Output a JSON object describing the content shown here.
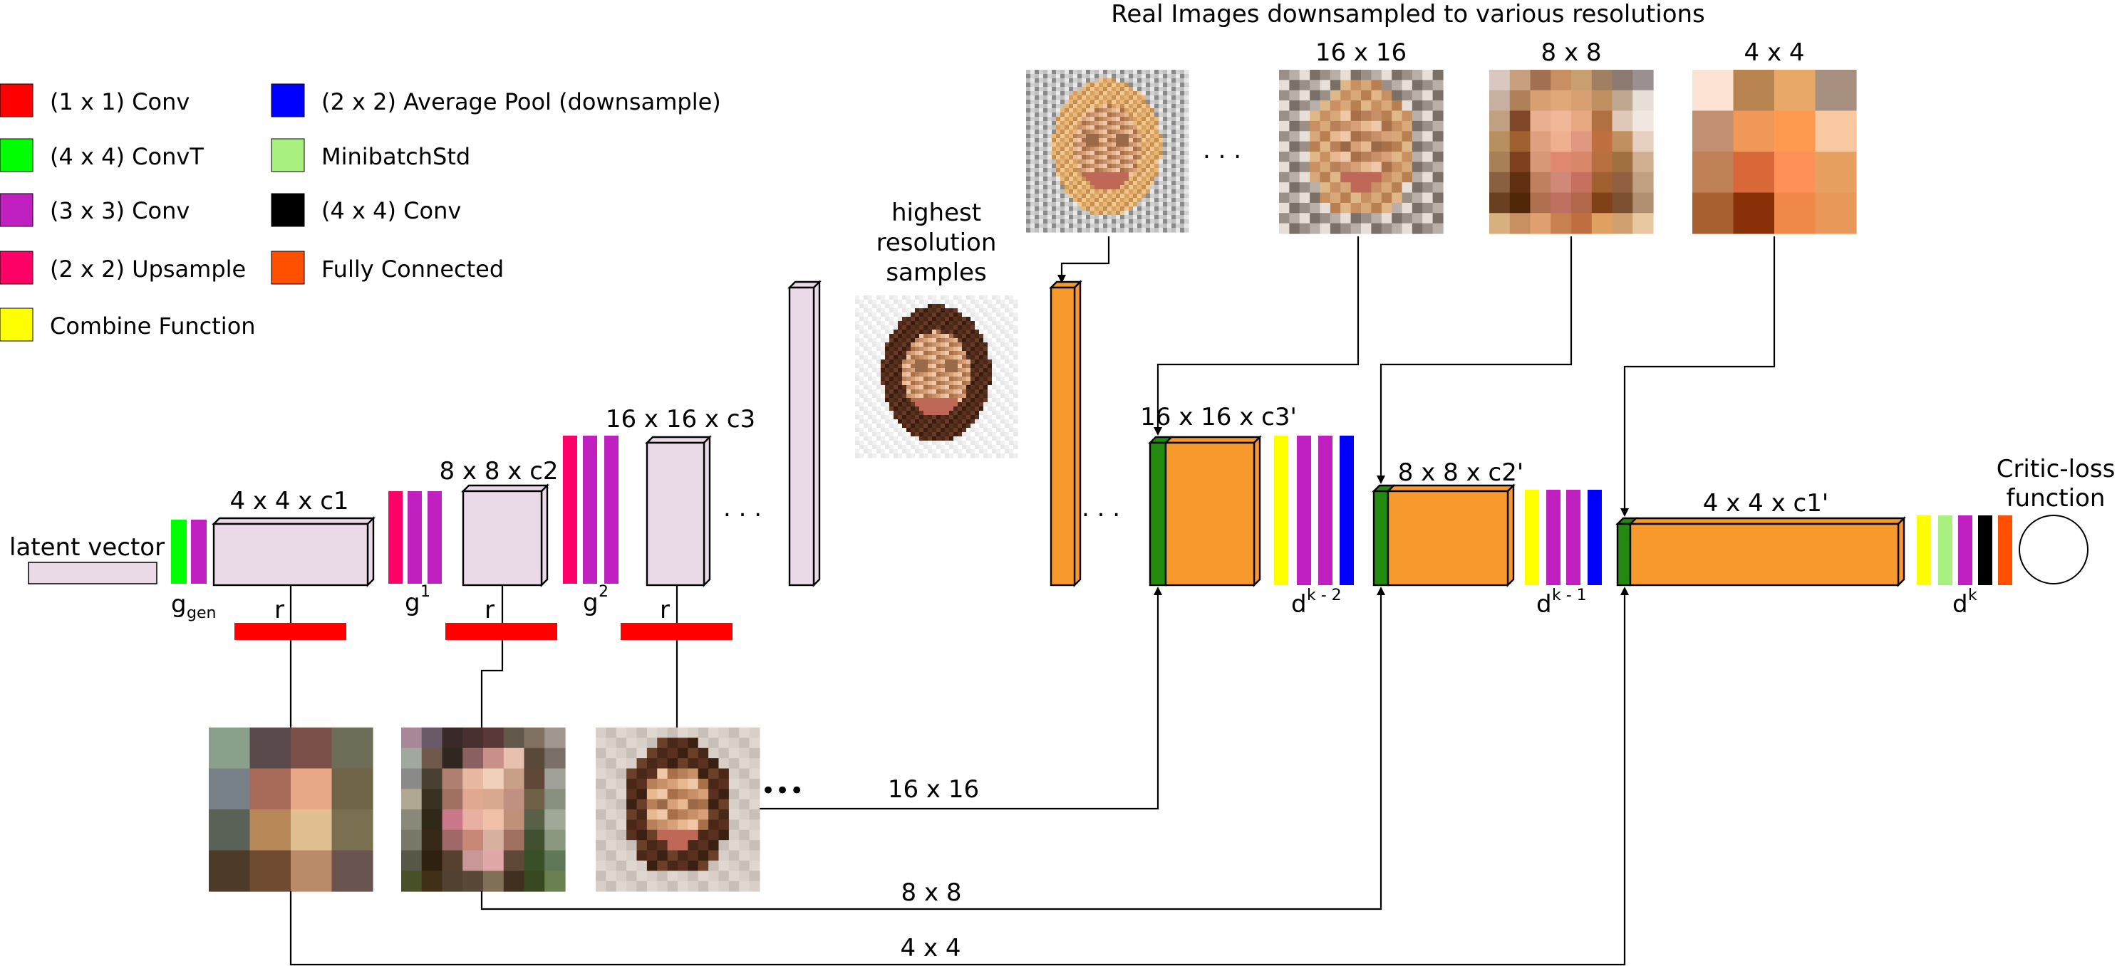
{
  "legend": [
    {
      "label": "(1 x 1) Conv",
      "color": "#ff0000"
    },
    {
      "label": "(4 x 4) ConvT",
      "color": "#00ff00"
    },
    {
      "label": "(3 x 3) Conv",
      "color": "#c020c0"
    },
    {
      "label": "(2 x 2) Upsample",
      "color": "#ff0066"
    },
    {
      "label": "Combine Function",
      "color": "#ffff00"
    },
    {
      "label": "(2 x 2) Average Pool (downsample)",
      "color": "#0000ff"
    },
    {
      "label": "MinibatchStd",
      "color": "#a8f080"
    },
    {
      "label": "(4 x 4) Conv",
      "color": "#000000"
    },
    {
      "label": "Fully Connected",
      "color": "#ff5000"
    }
  ],
  "colors": {
    "generator_block": "#ead9e6",
    "critic_block": "#f7992c",
    "critic_first": "#228b0e"
  },
  "generator": {
    "latent_label": "latent vector",
    "blocks": [
      "4 x 4 x c1",
      "8 x 8 x c2",
      "16 x 16 x c3"
    ],
    "group_labels": {
      "g_gen_main": "g",
      "g_gen_sub": "gen",
      "g1_main": "g",
      "g1_sup": "1",
      "g2_main": "g",
      "g2_sup": "2"
    },
    "r_label": "r",
    "ellipsis": ". . .",
    "tail_dots": "•••"
  },
  "highest_res": {
    "line1": "highest",
    "line2": "resolution",
    "line3": "samples"
  },
  "real_images": {
    "title": "Real Images downsampled to various resolutions",
    "resolutions": [
      "16 x 16",
      "8 x 8",
      "4 x 4"
    ],
    "ellipsis": ". . ."
  },
  "critic": {
    "blocks": [
      "16 x 16 x c3'",
      "8 x 8 x c2'",
      "4 x 4 x c1'"
    ],
    "d_labels": [
      {
        "main": "d",
        "sup": "k - 2"
      },
      {
        "main": "d",
        "sup": "k - 1"
      },
      {
        "main": "d",
        "sup": "k"
      }
    ],
    "loss_line1": "Critic-loss",
    "loss_line2": "function",
    "ellipsis": ". . ."
  },
  "paths": {
    "p16": "16 x 16",
    "p8": "8 x 8",
    "p4": "4 x 4"
  },
  "images": {
    "gen4": [
      [
        "#8aa08a",
        "#5a4a4c",
        "#7a5048",
        "#6e6e58"
      ],
      [
        "#788088",
        "#a86a58",
        "#e8a888",
        "#706448"
      ],
      [
        "#5a6258",
        "#b88858",
        "#e0c090",
        "#7a7050"
      ],
      [
        "#4e3a28",
        "#6e4a30",
        "#b88a68",
        "#6a5450"
      ]
    ],
    "gen8": [
      [
        "#a88898",
        "#6a5a68",
        "#382828",
        "#483030",
        "#5a3838",
        "#605848",
        "#807060",
        "#a09890"
      ],
      [
        "#a0a8a0",
        "#70584a",
        "#302820",
        "#8a6060",
        "#c89088",
        "#e8c0b0",
        "#5a4838",
        "#7a7068"
      ],
      [
        "#8a8a88",
        "#484030",
        "#b08070",
        "#e8b8a0",
        "#f0d0b8",
        "#c8a088",
        "#604838",
        "#a0a098"
      ],
      [
        "#b0a890",
        "#383020",
        "#a07060",
        "#e0a890",
        "#d8a890",
        "#c09080",
        "#706048",
        "#889080"
      ],
      [
        "#8a8878",
        "#302818",
        "#c87888",
        "#e8b0a0",
        "#f0c0a8",
        "#c09078",
        "#586048",
        "#a0a898"
      ],
      [
        "#7a7868",
        "#382818",
        "#a06868",
        "#c88878",
        "#d8b0a0",
        "#a07060",
        "#405030",
        "#8a9880"
      ],
      [
        "#585848",
        "#302010",
        "#584030",
        "#c89898",
        "#e0a8a8",
        "#604838",
        "#385028",
        "#607858"
      ],
      [
        "#485028",
        "#403018",
        "#504030",
        "#584838",
        "#807058",
        "#403020",
        "#384820",
        "#6a8050"
      ]
    ],
    "real8": [
      [
        "#d8c8c0",
        "#c8a080",
        "#a07050",
        "#c89060",
        "#c8a070",
        "#a08060",
        "#8a7a70",
        "#9a9090"
      ],
      [
        "#c8b0a0",
        "#b08058",
        "#d8a070",
        "#e0a878",
        "#d8a070",
        "#c09060",
        "#c0a890",
        "#e8e0d8"
      ],
      [
        "#c0a080",
        "#804828",
        "#e8b090",
        "#f0b898",
        "#e8a880",
        "#b07040",
        "#e0c8b8",
        "#f0e8e0"
      ],
      [
        "#b89060",
        "#a06030",
        "#e0a080",
        "#f0b090",
        "#e09880",
        "#c07040",
        "#c09060",
        "#e8d0c0"
      ],
      [
        "#a88058",
        "#804020",
        "#d89878",
        "#e08870",
        "#d88868",
        "#b87040",
        "#a07040",
        "#d0b090"
      ],
      [
        "#8a6040",
        "#603010",
        "#c08060",
        "#d08878",
        "#c87060",
        "#a06030",
        "#906040",
        "#c0a080"
      ],
      [
        "#6a4020",
        "#502808",
        "#b07050",
        "#c07060",
        "#b06848",
        "#804018",
        "#7a5030",
        "#b09070"
      ],
      [
        "#d8b080",
        "#c89060",
        "#e0a070",
        "#c88050",
        "#c07040",
        "#e0a060",
        "#d0a070",
        "#e8c8a0"
      ]
    ],
    "real4": [
      [
        "#fce2d2",
        "#b88450",
        "#e8a868",
        "#a89080"
      ],
      [
        "#c09070",
        "#f09858",
        "#ff9850",
        "#f8c8a0"
      ],
      [
        "#c08058",
        "#d86838",
        "#ff9058",
        "#e8a060"
      ],
      [
        "#a86030",
        "#8a3008",
        "#f08848",
        "#e89858"
      ]
    ],
    "real16_palette": [
      "#f0c8a8",
      "#e8b890",
      "#d8a078",
      "#c89068",
      "#b88058",
      "#a87048",
      "#f4d4bc",
      "#e0a890",
      "#c8a080",
      "#b0906c",
      "#988070",
      "#d8c0b0",
      "#ece4dc",
      "#c06858",
      "#9a6a48",
      "#806040"
    ]
  }
}
